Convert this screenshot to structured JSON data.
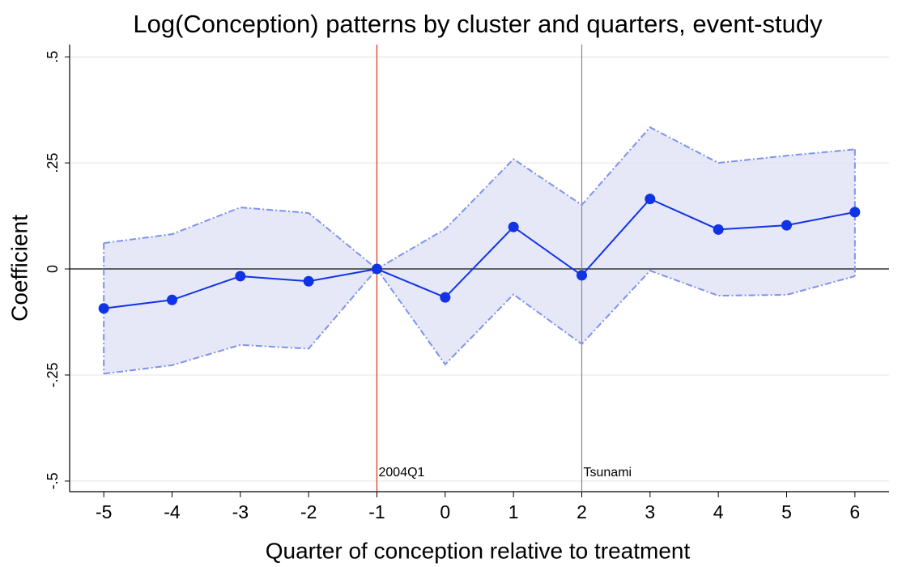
{
  "chart_data": {
    "type": "line",
    "title": "Log(Conception) patterns by cluster and quarters, event-study",
    "x_label": "Quarter of conception relative to treatment",
    "y_label": "Coefficient",
    "x": [
      -5,
      -4,
      -3,
      -2,
      -1,
      0,
      1,
      2,
      3,
      4,
      5,
      6
    ],
    "values": [
      -0.093,
      -0.073,
      -0.017,
      -0.029,
      0,
      -0.067,
      0.099,
      -0.015,
      0.165,
      0.093,
      0.103,
      0.134
    ],
    "ci_upper": [
      0.061,
      0.082,
      0.145,
      0.132,
      0,
      0.094,
      0.259,
      0.151,
      0.334,
      0.25,
      0.267,
      0.282
    ],
    "ci_lower": [
      -0.247,
      -0.227,
      -0.179,
      -0.188,
      0,
      -0.225,
      -0.06,
      -0.177,
      -0.004,
      -0.063,
      -0.061,
      -0.017
    ],
    "color": "#1133e6",
    "band_color": "#e6e8f8",
    "band_edge_color": "#7f92ee",
    "xlim": [
      -5.5,
      6.5
    ],
    "xticks": [
      -5,
      -4,
      -3,
      -2,
      -1,
      0,
      1,
      2,
      3,
      4,
      5,
      6
    ],
    "ylim": [
      -0.525,
      0.529
    ],
    "yticks": [
      {
        "value": -0.5,
        "label": "-.5"
      },
      {
        "value": -0.25,
        "label": "-.25"
      },
      0,
      {
        "value": 0.25,
        "label": ".25"
      },
      {
        "value": 0.5,
        "label": ".5"
      }
    ],
    "grid": true,
    "vlines": [
      {
        "x": -1,
        "label": "2004Q1",
        "color": "#e0301e"
      },
      {
        "x": 2,
        "label": "Tsunami",
        "color": "#888888"
      }
    ]
  }
}
